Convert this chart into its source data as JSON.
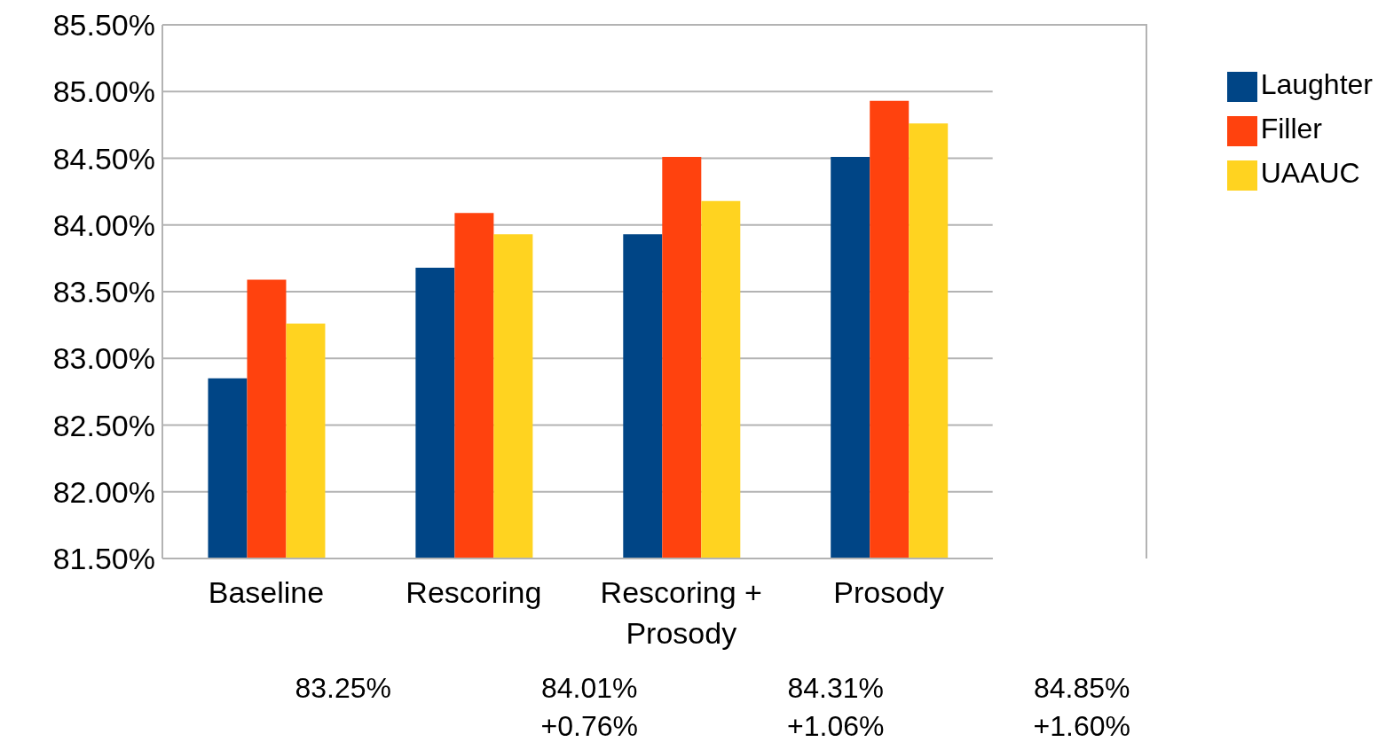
{
  "chart_data": {
    "type": "bar",
    "categories": [
      "Baseline",
      "Rescoring",
      "Rescoring + Prosody",
      "Prosody"
    ],
    "series": [
      {
        "name": "Laughter",
        "color": "#004586",
        "values": [
          82.85,
          83.68,
          83.93,
          84.51
        ]
      },
      {
        "name": "Filler",
        "color": "#ff420e",
        "values": [
          83.59,
          84.09,
          84.51,
          84.93
        ]
      },
      {
        "name": "UAAUC",
        "color": "#ffd320",
        "values": [
          83.26,
          83.93,
          84.18,
          84.76
        ]
      }
    ],
    "ylim": [
      81.5,
      85.5
    ],
    "yticks": [
      {
        "value": 81.5,
        "label": "81.50%"
      },
      {
        "value": 82,
        "label": "82.00%"
      },
      {
        "value": 82.5,
        "label": "82.50%"
      },
      {
        "value": 83,
        "label": "83.00%"
      },
      {
        "value": 83.5,
        "label": "83.50%"
      },
      {
        "value": 84,
        "label": "84.00%"
      },
      {
        "value": 84.5,
        "label": "84.50%"
      },
      {
        "value": 85,
        "label": "85.00%"
      },
      {
        "value": 85.5,
        "label": "85.50%"
      }
    ],
    "grid": "y",
    "legend": "top right",
    "annotations": [
      "83.25%",
      "84.01%\n+0.76%",
      "84.31%\n+1.06%",
      "84.85%\n+1.60%"
    ]
  }
}
